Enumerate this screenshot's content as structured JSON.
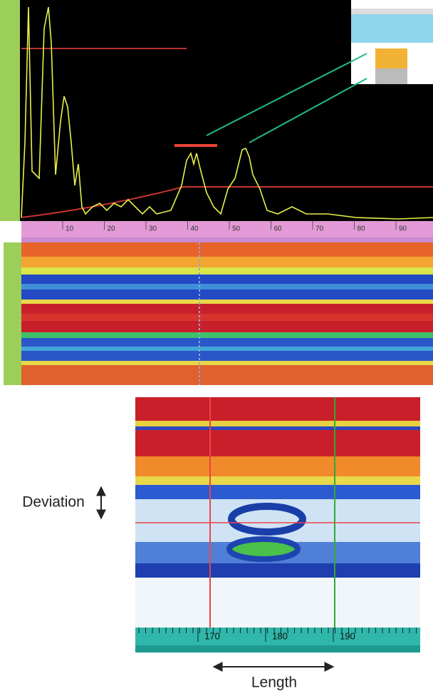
{
  "ascan": {
    "axis_labels": [
      "10",
      "20",
      "30",
      "40",
      "50",
      "60",
      "70",
      "80",
      "90"
    ]
  },
  "zoom": {
    "axis_labels": [
      "170",
      "180",
      "190"
    ]
  },
  "labels": {
    "deviation": "Deviation",
    "length": "Length"
  }
}
